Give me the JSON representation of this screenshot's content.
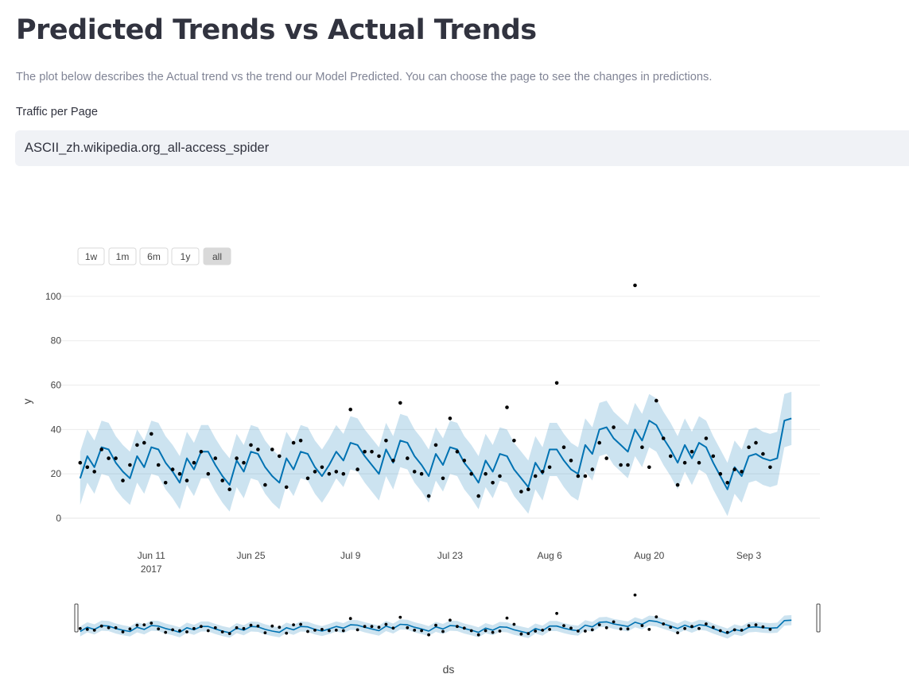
{
  "header": {
    "title": "Predicted Trends vs Actual Trends",
    "description": "The plot below describes the Actual trend vs the trend our Model Predicted. You can choose the page to see the changes in predictions."
  },
  "page_input": {
    "label": "Traffic per Page",
    "value": "ASCII_zh.wikipedia.org_all-access_spider"
  },
  "colors": {
    "forecast_line": "#0072b2",
    "uncertainty_band": "#0072b2",
    "actual_points": "#000000",
    "active_button": "#d9d9d9"
  },
  "range_selector": {
    "buttons": [
      "1w",
      "1m",
      "6m",
      "1y",
      "all"
    ],
    "active": "all"
  },
  "chart_data": {
    "type": "line",
    "xlabel": "ds",
    "ylabel": "y",
    "x_start": "2017-06-01",
    "x_end": "2017-09-10",
    "ylim": [
      0,
      110
    ],
    "y_ticks": [
      0,
      20,
      40,
      60,
      80,
      100
    ],
    "x_ticks": [
      {
        "date": "2017-06-11",
        "label": "Jun 11",
        "sublabel": "2017"
      },
      {
        "date": "2017-06-25",
        "label": "Jun 25",
        "sublabel": ""
      },
      {
        "date": "2017-07-09",
        "label": "Jul 9",
        "sublabel": ""
      },
      {
        "date": "2017-07-23",
        "label": "Jul 23",
        "sublabel": ""
      },
      {
        "date": "2017-08-06",
        "label": "Aug 6",
        "sublabel": ""
      },
      {
        "date": "2017-08-20",
        "label": "Aug 20",
        "sublabel": ""
      },
      {
        "date": "2017-09-03",
        "label": "Sep 3",
        "sublabel": ""
      }
    ],
    "grid": true,
    "rangeslider": true,
    "series": [
      {
        "name": "Actual",
        "kind": "markers",
        "x": [
          "2017-06-01",
          "2017-06-02",
          "2017-06-03",
          "2017-06-04",
          "2017-06-05",
          "2017-06-06",
          "2017-06-07",
          "2017-06-08",
          "2017-06-09",
          "2017-06-10",
          "2017-06-11",
          "2017-06-12",
          "2017-06-13",
          "2017-06-14",
          "2017-06-15",
          "2017-06-16",
          "2017-06-17",
          "2017-06-18",
          "2017-06-19",
          "2017-06-20",
          "2017-06-21",
          "2017-06-22",
          "2017-06-23",
          "2017-06-24",
          "2017-06-25",
          "2017-06-26",
          "2017-06-27",
          "2017-06-28",
          "2017-06-29",
          "2017-06-30",
          "2017-07-01",
          "2017-07-02",
          "2017-07-03",
          "2017-07-04",
          "2017-07-05",
          "2017-07-06",
          "2017-07-07",
          "2017-07-08",
          "2017-07-09",
          "2017-07-10",
          "2017-07-11",
          "2017-07-12",
          "2017-07-13",
          "2017-07-14",
          "2017-07-15",
          "2017-07-16",
          "2017-07-17",
          "2017-07-18",
          "2017-07-19",
          "2017-07-20",
          "2017-07-21",
          "2017-07-22",
          "2017-07-23",
          "2017-07-24",
          "2017-07-25",
          "2017-07-26",
          "2017-07-27",
          "2017-07-28",
          "2017-07-29",
          "2017-07-30",
          "2017-07-31",
          "2017-08-01",
          "2017-08-02",
          "2017-08-03",
          "2017-08-04",
          "2017-08-05",
          "2017-08-06",
          "2017-08-07",
          "2017-08-08",
          "2017-08-09",
          "2017-08-10",
          "2017-08-11",
          "2017-08-12",
          "2017-08-13",
          "2017-08-14",
          "2017-08-15",
          "2017-08-16",
          "2017-08-17",
          "2017-08-18",
          "2017-08-19",
          "2017-08-20",
          "2017-08-21",
          "2017-08-22",
          "2017-08-23",
          "2017-08-24",
          "2017-08-25",
          "2017-08-26",
          "2017-08-27",
          "2017-08-28",
          "2017-08-29",
          "2017-08-30",
          "2017-08-31",
          "2017-09-01",
          "2017-09-02",
          "2017-09-03",
          "2017-09-04",
          "2017-09-05",
          "2017-09-06",
          "2017-09-07",
          "2017-09-08",
          "2017-09-09"
        ],
        "y": [
          25,
          23,
          21,
          31,
          27,
          27,
          17,
          24,
          33,
          34,
          38,
          24,
          16,
          22,
          20,
          17,
          25,
          30,
          20,
          27,
          17,
          13,
          27,
          25,
          33,
          31,
          15,
          31,
          28,
          14,
          34,
          35,
          18,
          21,
          23,
          20,
          21,
          20,
          49,
          22,
          30,
          30,
          28,
          35,
          26,
          52,
          27,
          21,
          20,
          10,
          33,
          18,
          45,
          30,
          26,
          20,
          10,
          20,
          16,
          19,
          50,
          35,
          12,
          13,
          19,
          21,
          23,
          61,
          32,
          26,
          19,
          19,
          22,
          34,
          27,
          41,
          24,
          24,
          105,
          32,
          23,
          53,
          36,
          28,
          15,
          25,
          30,
          25,
          36,
          28,
          20,
          16,
          22,
          21,
          32,
          34,
          29,
          23,
          null,
          null,
          null
        ]
      },
      {
        "name": "Forecast",
        "kind": "line",
        "yhat": [
          18,
          28,
          23,
          32,
          31,
          25,
          21,
          18,
          28,
          23,
          32,
          31,
          25,
          21,
          16,
          27,
          22,
          30,
          30,
          24,
          19,
          15,
          26,
          21,
          30,
          29,
          23,
          19,
          16,
          27,
          22,
          30,
          29,
          23,
          19,
          24,
          30,
          26,
          34,
          33,
          28,
          24,
          20,
          31,
          25,
          35,
          34,
          28,
          24,
          19,
          29,
          24,
          32,
          31,
          25,
          21,
          16,
          26,
          21,
          29,
          28,
          22,
          18,
          14,
          25,
          20,
          31,
          31,
          26,
          22,
          20,
          33,
          29,
          40,
          41,
          36,
          33,
          30,
          40,
          35,
          44,
          42,
          36,
          31,
          25,
          33,
          27,
          34,
          32,
          25,
          19,
          13,
          23,
          19,
          28,
          29,
          27,
          26,
          27,
          44,
          45
        ],
        "yhat_lower": [
          6,
          16,
          11,
          20,
          19,
          13,
          9,
          6,
          16,
          11,
          20,
          19,
          13,
          9,
          4,
          15,
          10,
          18,
          18,
          12,
          7,
          3,
          14,
          9,
          18,
          17,
          11,
          7,
          4,
          15,
          10,
          18,
          17,
          11,
          7,
          12,
          18,
          14,
          22,
          21,
          16,
          12,
          8,
          19,
          13,
          23,
          22,
          16,
          12,
          7,
          17,
          12,
          20,
          19,
          13,
          9,
          4,
          14,
          9,
          17,
          16,
          10,
          6,
          2,
          13,
          8,
          19,
          19,
          14,
          10,
          8,
          21,
          17,
          28,
          29,
          24,
          21,
          18,
          28,
          23,
          32,
          30,
          24,
          19,
          13,
          21,
          15,
          22,
          20,
          13,
          7,
          1,
          11,
          7,
          16,
          17,
          15,
          14,
          15,
          32,
          33
        ],
        "yhat_upper": [
          30,
          40,
          35,
          44,
          43,
          37,
          33,
          30,
          40,
          35,
          44,
          43,
          37,
          33,
          28,
          39,
          34,
          42,
          42,
          36,
          31,
          27,
          38,
          33,
          42,
          41,
          35,
          31,
          28,
          39,
          34,
          42,
          41,
          35,
          31,
          36,
          42,
          38,
          46,
          45,
          40,
          36,
          32,
          43,
          37,
          47,
          46,
          40,
          36,
          31,
          41,
          36,
          44,
          43,
          37,
          33,
          28,
          38,
          33,
          41,
          40,
          34,
          30,
          26,
          37,
          32,
          43,
          43,
          38,
          34,
          32,
          45,
          41,
          52,
          53,
          48,
          45,
          42,
          52,
          47,
          56,
          54,
          48,
          43,
          37,
          45,
          39,
          46,
          44,
          37,
          31,
          25,
          35,
          31,
          40,
          41,
          39,
          38,
          39,
          56,
          57
        ]
      }
    ]
  }
}
